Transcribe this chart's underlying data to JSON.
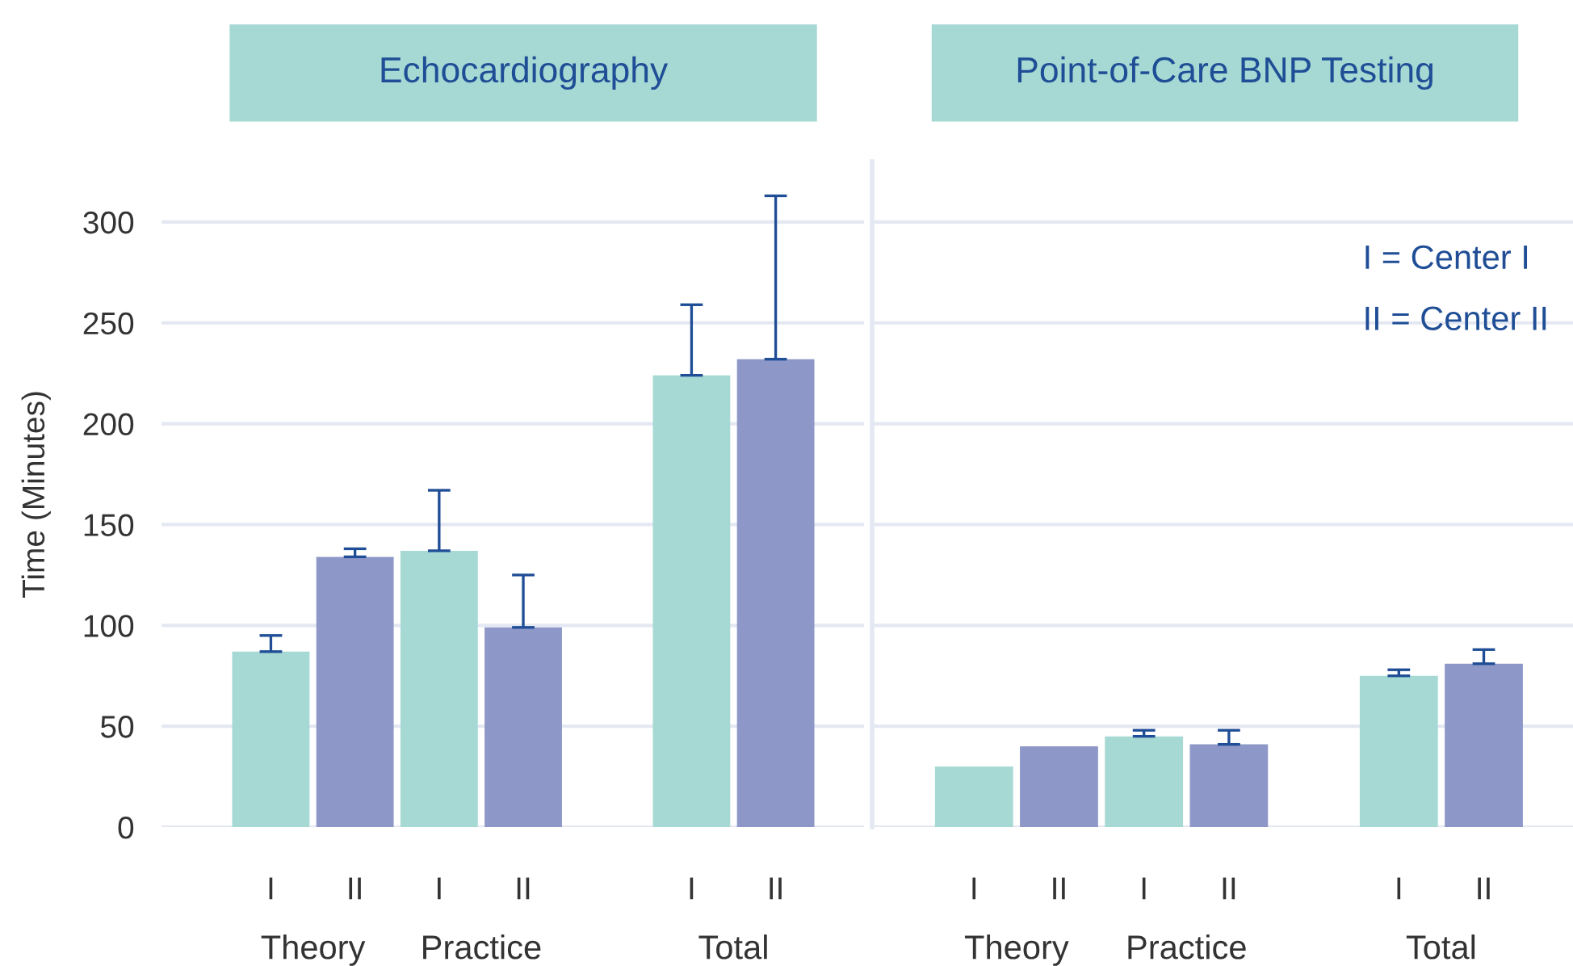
{
  "chart_data": [
    {
      "type": "bar",
      "title": "Echocardiography",
      "ylabel": "Time (Minutes)",
      "categories": [
        "I",
        "II",
        "I",
        "II",
        null,
        "I",
        "II"
      ],
      "values": [
        87,
        134,
        137,
        99,
        null,
        224,
        232
      ],
      "errors": [
        [
          87,
          95
        ],
        [
          134,
          138
        ],
        [
          137,
          167
        ],
        [
          99,
          125
        ],
        null,
        [
          224,
          259
        ],
        [
          232,
          313
        ]
      ],
      "colors": [
        "#a6d9d4",
        "#8e98c8",
        "#a6d9d4",
        "#8e98c8",
        "#a6d9d4",
        "#a6d9d4",
        "#8e98c8"
      ],
      "ylim": [
        0,
        330
      ],
      "yticks": [
        0,
        50,
        100,
        150,
        200,
        250,
        300
      ],
      "grid": "y",
      "annotations": [
        "Theory",
        "Practice",
        "Total"
      ]
    },
    {
      "type": "bar",
      "title": "Point-of-Care BNP Testing",
      "categories": [
        "I",
        "II",
        "I",
        "II",
        null,
        "I",
        "II"
      ],
      "values": [
        30,
        40,
        45,
        41,
        null,
        75,
        81
      ],
      "errors": [
        null,
        null,
        [
          45,
          48
        ],
        [
          41,
          48
        ],
        null,
        [
          75,
          78
        ],
        [
          81,
          88
        ]
      ],
      "colors": [
        "#a6d9d4",
        "#8e98c8",
        "#a6d9d4",
        "#8e98c8",
        "#a6d9d4",
        "#a6d9d4",
        "#8e98c8"
      ],
      "ylim": [
        0,
        330
      ],
      "yticks": [
        0,
        50,
        100,
        150,
        200,
        250,
        300
      ],
      "grid": "y",
      "tick_labels": "x",
      "annotations": [
        "Theory",
        "Practice",
        "Total",
        "I = Center I",
        "II = Center II"
      ]
    }
  ]
}
